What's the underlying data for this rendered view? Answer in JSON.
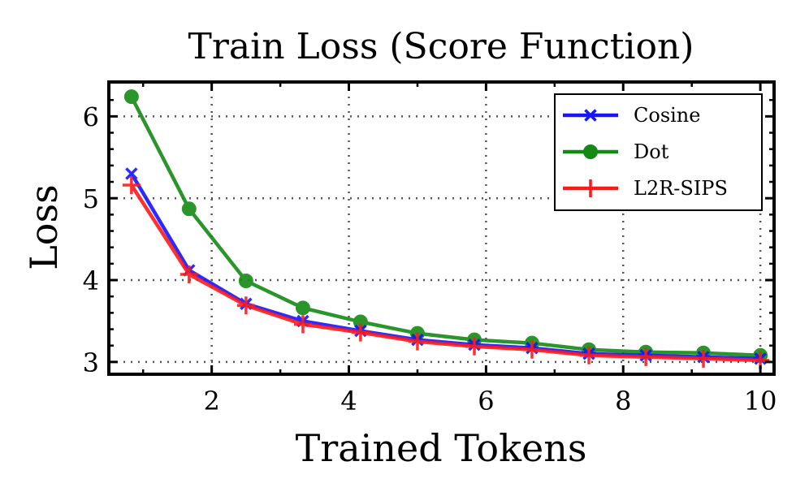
{
  "chart_data": {
    "type": "line",
    "title": "Train Loss (Score Function)",
    "xlabel": "Trained Tokens",
    "ylabel": "Loss",
    "xlim": [
      0.5,
      10.2
    ],
    "ylim": [
      2.85,
      6.42
    ],
    "xticks": [
      2,
      4,
      6,
      8,
      10
    ],
    "yticks": [
      3,
      4,
      5,
      6
    ],
    "grid": true,
    "legend_position": "top-right",
    "x": [
      0.83,
      1.67,
      2.5,
      3.33,
      4.17,
      5.0,
      5.83,
      6.67,
      7.5,
      8.33,
      9.17,
      10.0
    ],
    "series": [
      {
        "name": "Cosine",
        "color": "#1515ff",
        "marker": "x",
        "values": [
          5.3,
          4.12,
          3.71,
          3.5,
          3.38,
          3.27,
          3.21,
          3.17,
          3.1,
          3.08,
          3.06,
          3.04
        ]
      },
      {
        "name": "Dot",
        "color": "#138a13",
        "marker": "circle",
        "values": [
          6.24,
          4.87,
          3.99,
          3.66,
          3.49,
          3.35,
          3.27,
          3.23,
          3.15,
          3.12,
          3.11,
          3.08
        ]
      },
      {
        "name": "L2R-SIPS",
        "color": "#ff1a1a",
        "marker": "plus",
        "values": [
          5.16,
          4.07,
          3.69,
          3.46,
          3.36,
          3.25,
          3.19,
          3.15,
          3.08,
          3.06,
          3.04,
          3.02
        ]
      }
    ]
  }
}
